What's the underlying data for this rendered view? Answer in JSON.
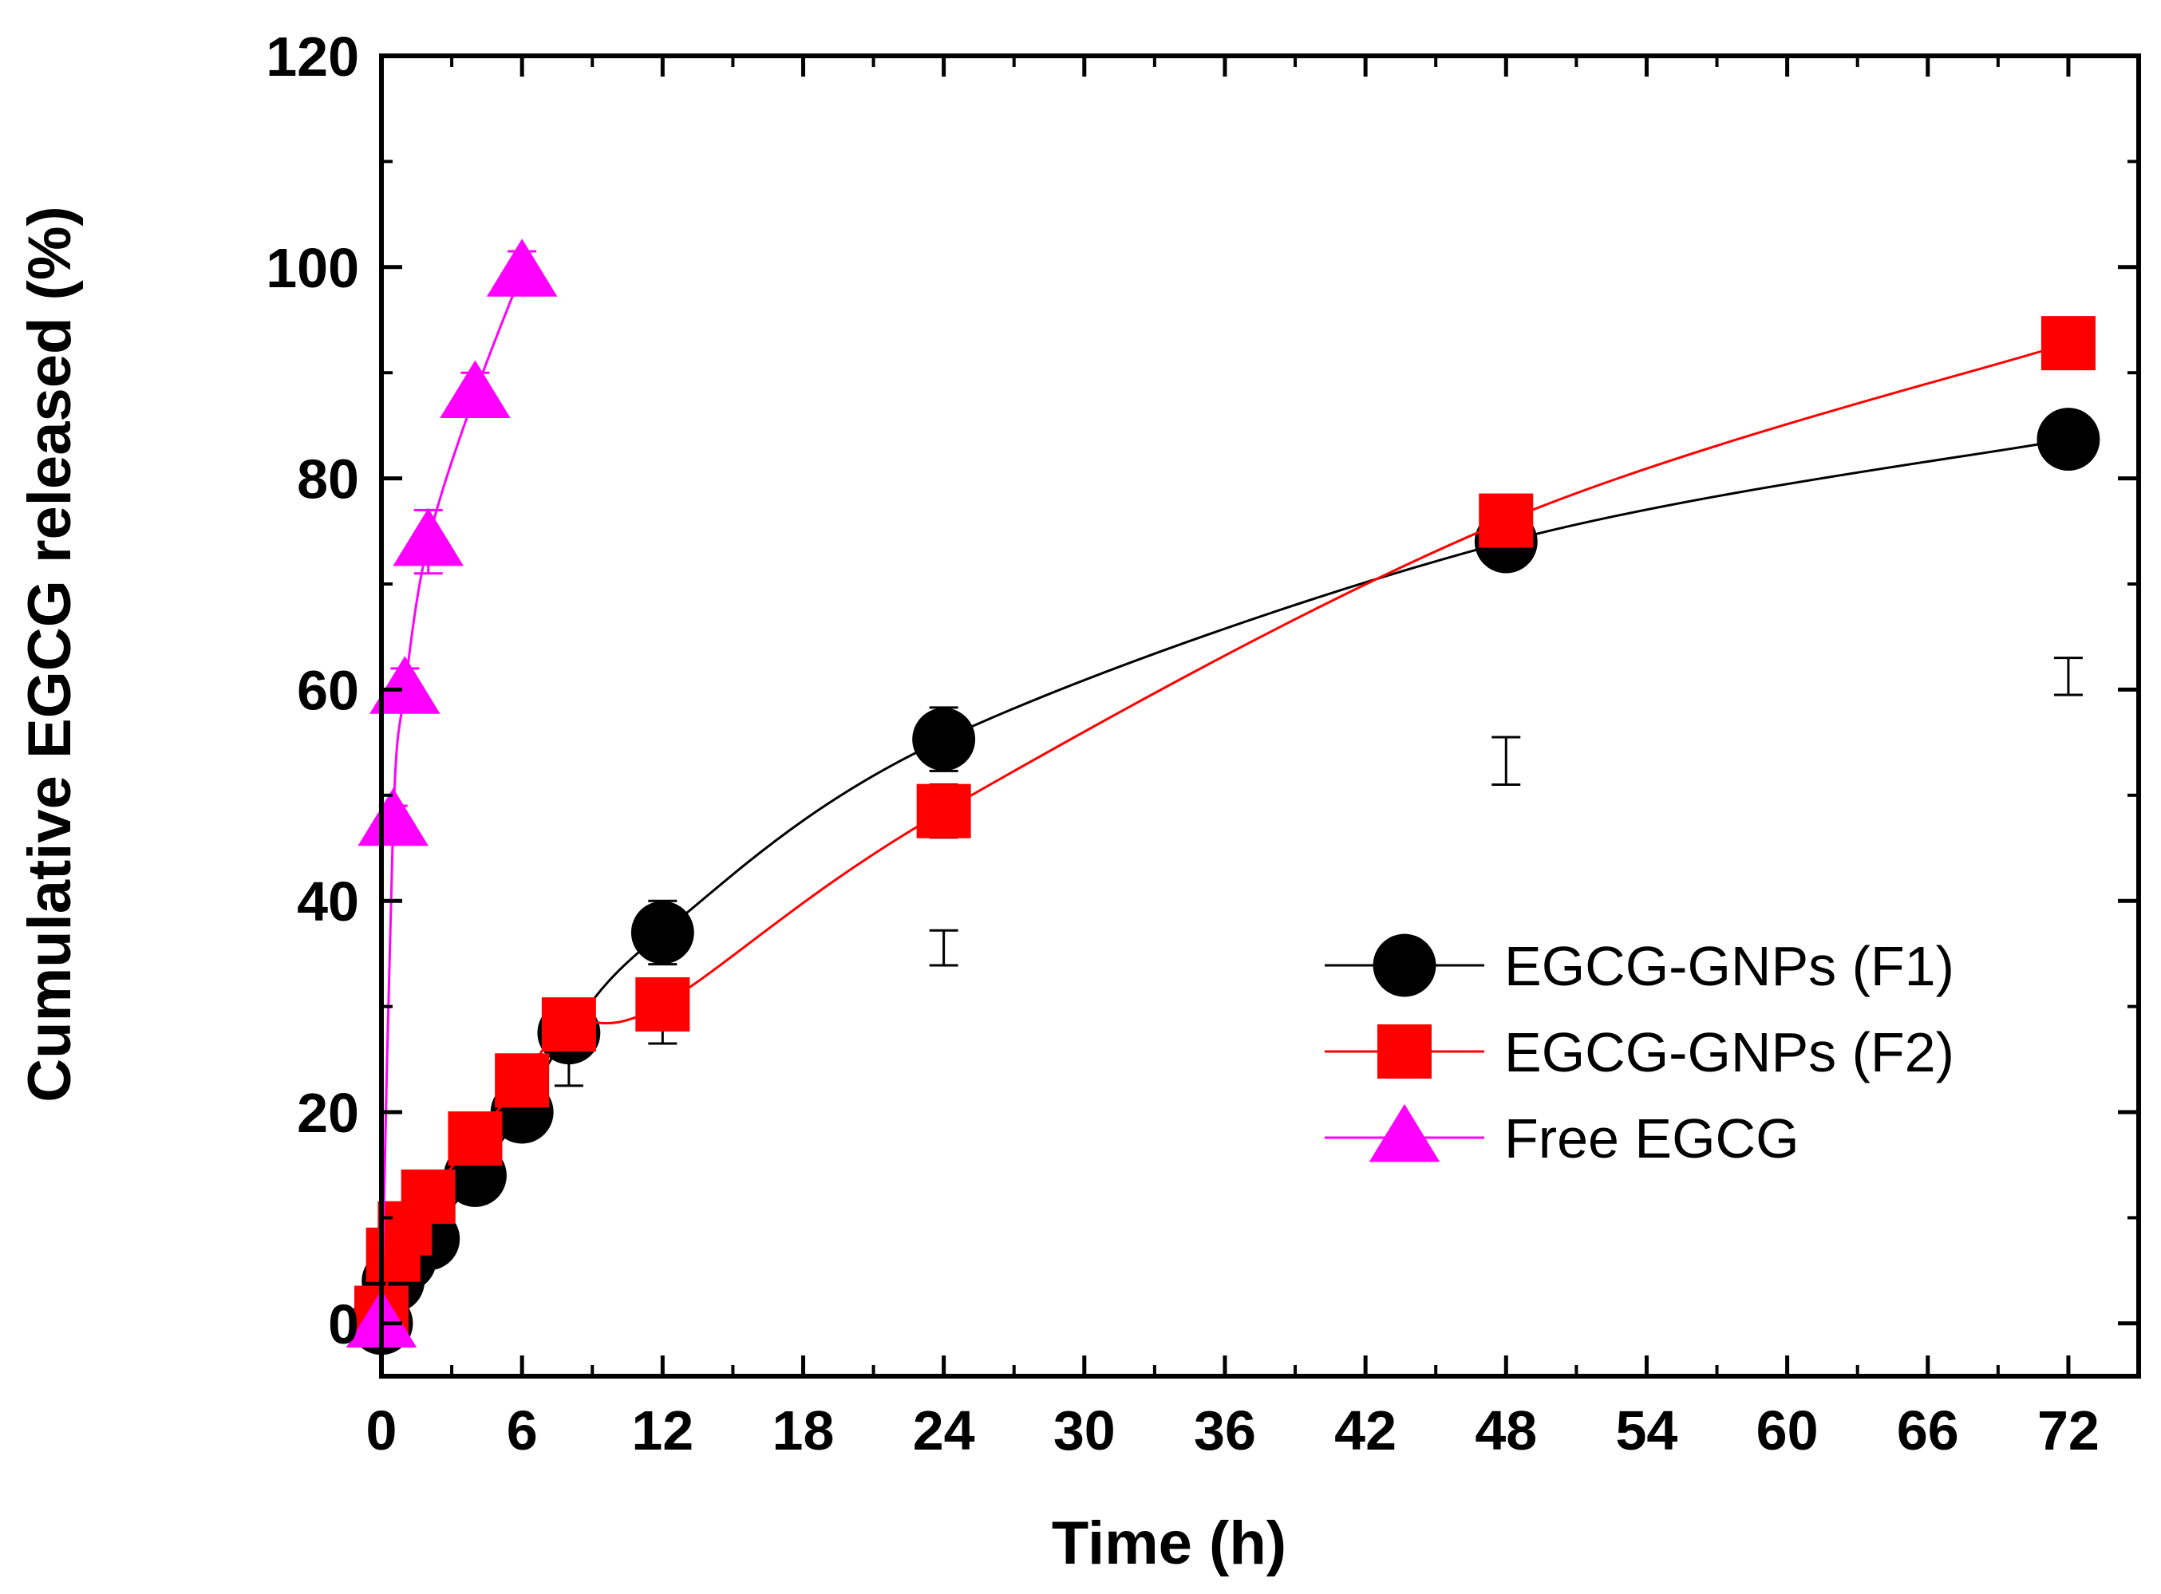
{
  "chart_data": {
    "type": "line",
    "xlabel": "Time (h)",
    "ylabel": "Cumulative EGCG released (%)",
    "xlim": [
      0,
      75
    ],
    "ylim": [
      -5,
      120
    ],
    "xticks": [
      0,
      6,
      12,
      18,
      24,
      30,
      36,
      42,
      48,
      54,
      60,
      66,
      72
    ],
    "yticks": [
      0,
      20,
      40,
      60,
      80,
      100,
      120
    ],
    "legend_position": "right-middle",
    "series": [
      {
        "name": "EGCG-GNPs (F1)",
        "color": "#000000",
        "marker": "circle",
        "x": [
          0,
          0.5,
          1,
          2,
          4,
          6,
          8,
          12,
          24,
          48,
          72
        ],
        "y": [
          0,
          4,
          6,
          8,
          14,
          20,
          27.5,
          37,
          55.3,
          74,
          83.7
        ],
        "error": [
          0.5,
          1,
          1.5,
          2,
          2.5,
          2,
          2.5,
          3,
          3,
          2.5,
          2
        ]
      },
      {
        "name": "EGCG-GNPs (F2)",
        "color": "#ff0000",
        "marker": "square",
        "x": [
          0,
          0.5,
          1,
          2,
          4,
          6,
          8,
          12,
          24,
          48,
          72
        ],
        "y": [
          1,
          6.5,
          9,
          12,
          17.5,
          23,
          28.3,
          30.2,
          48.5,
          76,
          92.8
        ],
        "error": [
          0.5,
          1,
          1.5,
          1.5,
          2,
          2,
          2,
          2,
          2.5,
          2,
          2
        ]
      },
      {
        "name": "Free EGCG",
        "color": "#ff00ff",
        "marker": "triangle",
        "x": [
          0,
          0.5,
          1,
          2,
          4,
          6
        ],
        "y": [
          0,
          47.5,
          60,
          74,
          88,
          99.5
        ],
        "error": [
          0.5,
          1.5,
          2,
          3,
          2,
          2
        ]
      }
    ],
    "error_only_marks": [
      {
        "x": 8,
        "low": 22.5,
        "high": 26.5
      },
      {
        "x": 12,
        "low": 26.5,
        "high": 29.5
      },
      {
        "x": 24,
        "low": 33.9,
        "high": 37.2
      },
      {
        "x": 48,
        "low": 51,
        "high": 55.5
      },
      {
        "x": 72,
        "low": 59.5,
        "high": 63
      }
    ]
  }
}
